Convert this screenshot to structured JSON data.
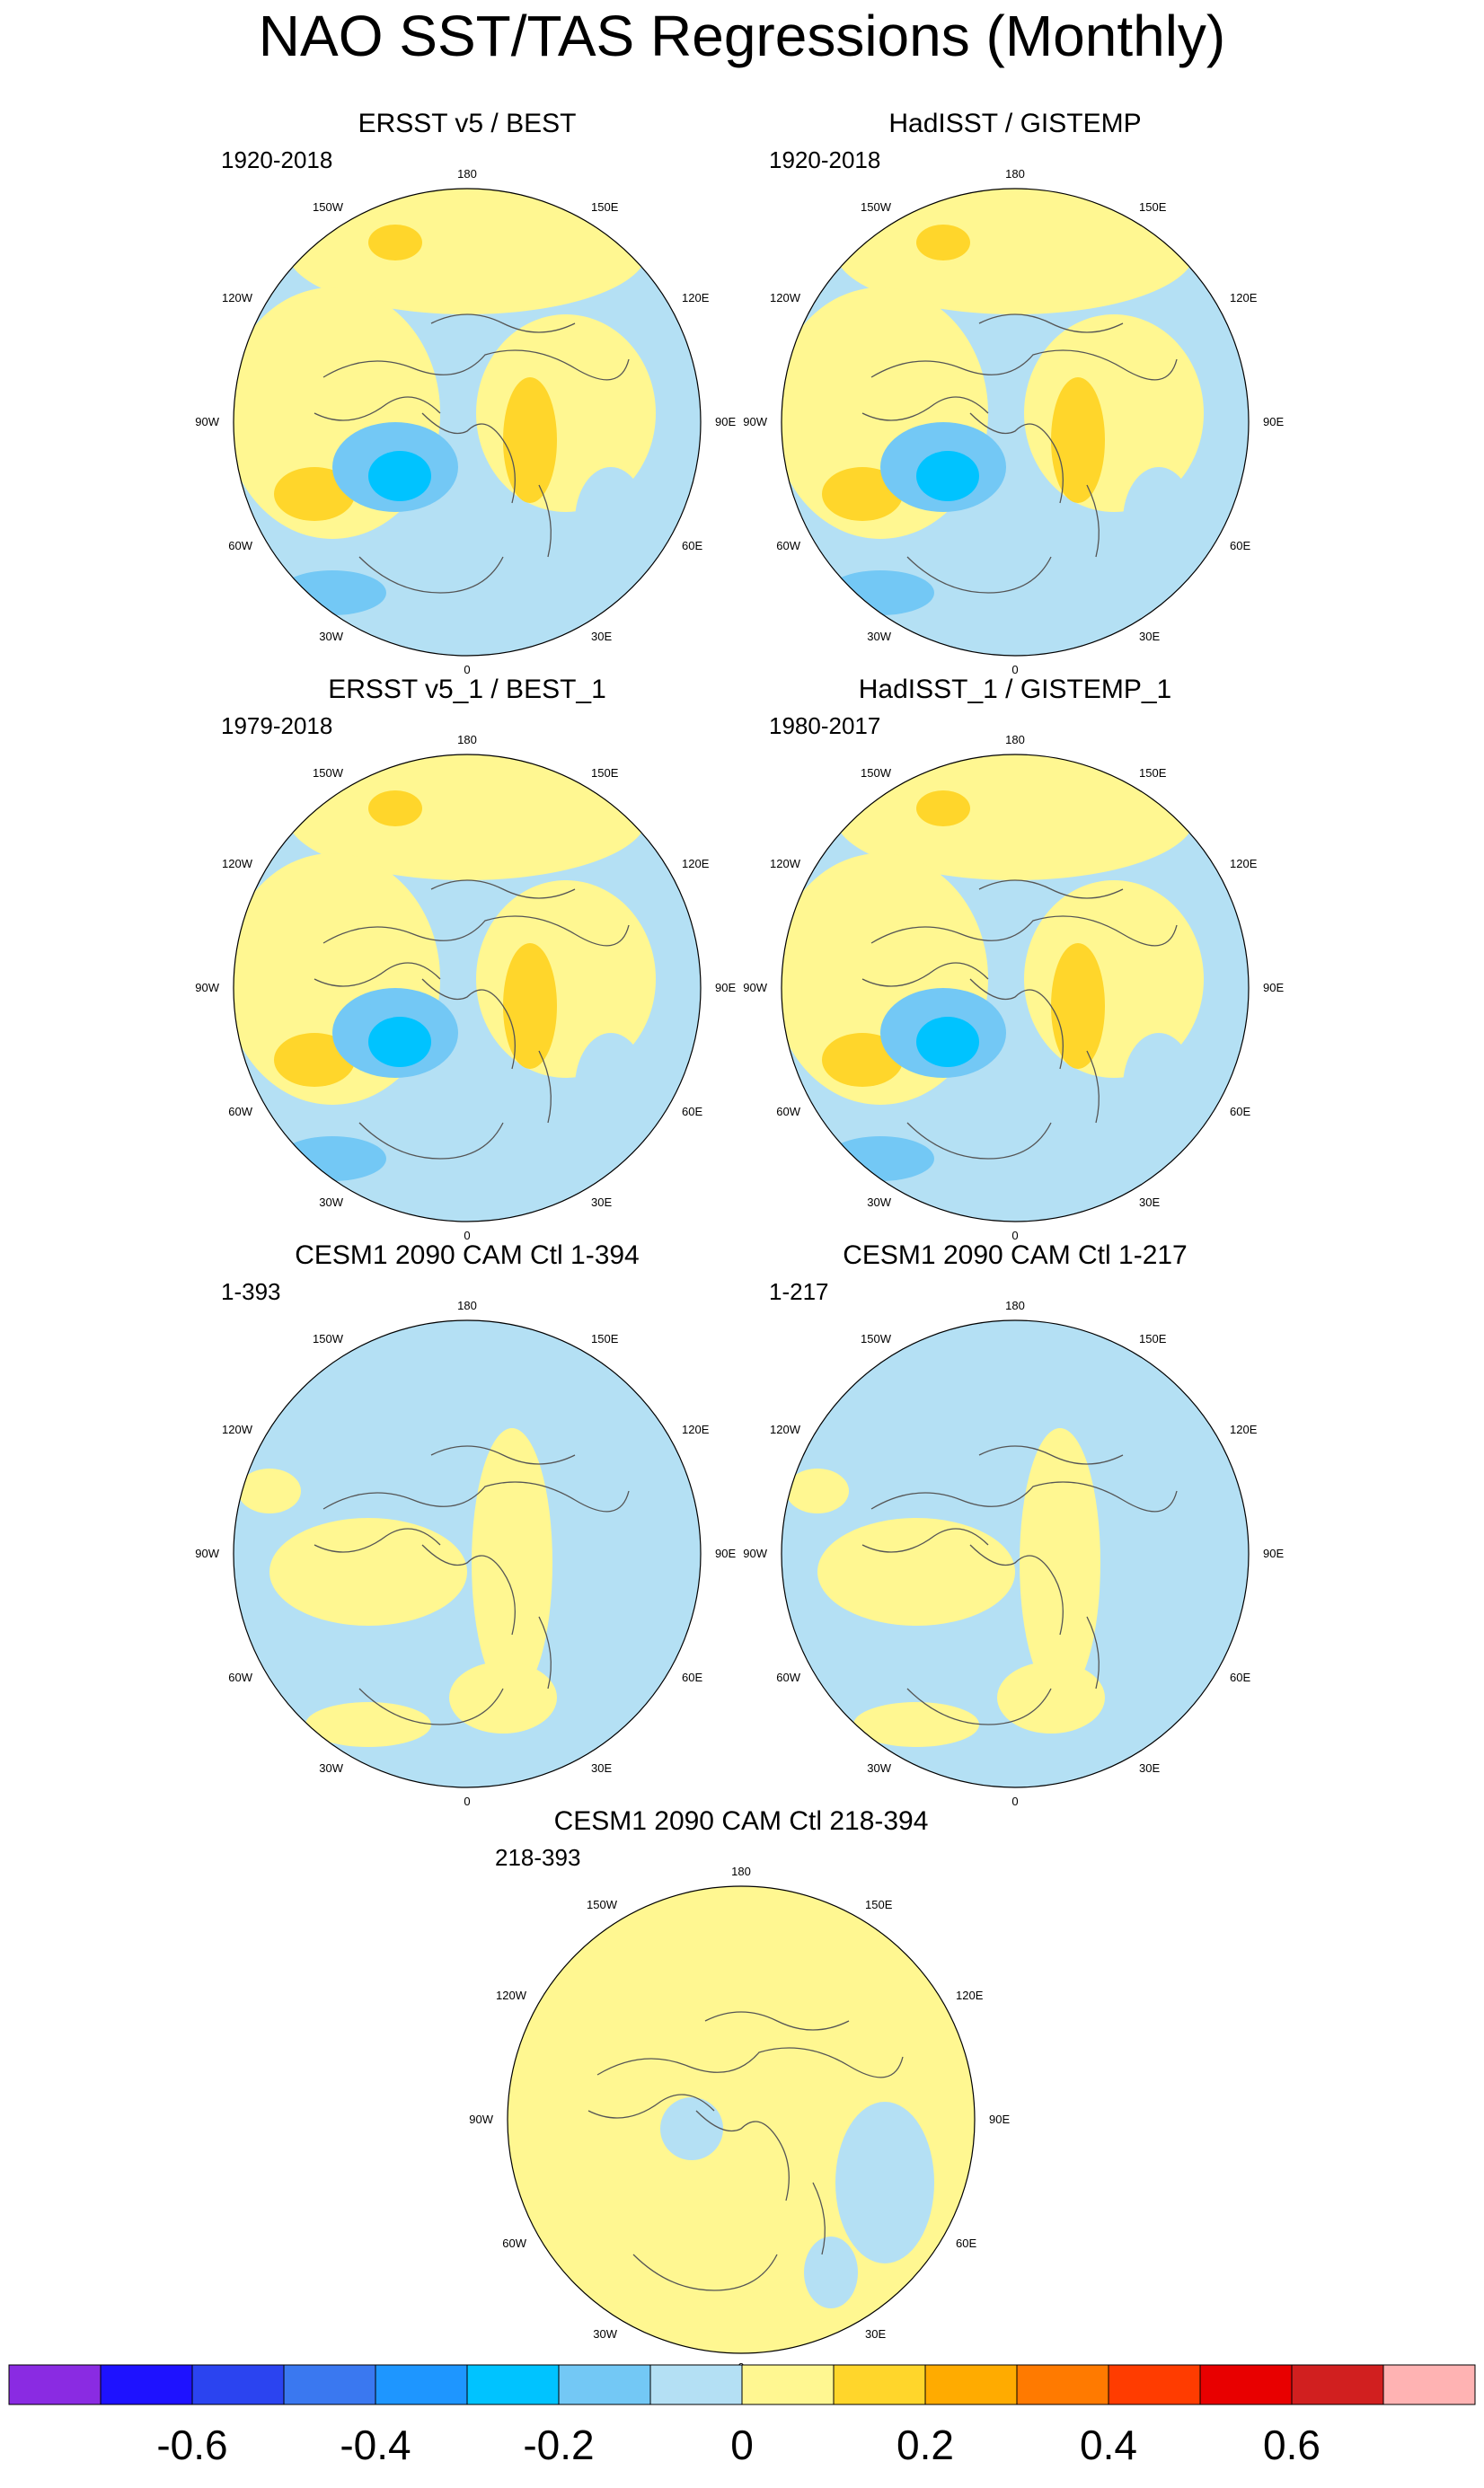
{
  "title": "NAO SST/TAS Regressions (Monthly)",
  "lon_labels": [
    "180",
    "150E",
    "120E",
    "90E",
    "60E",
    "30E",
    "0",
    "30W",
    "60W",
    "90W",
    "120W",
    "150W"
  ],
  "panels": [
    {
      "title": "ERSST v5 / BEST",
      "period": "1920-2018",
      "style": "obs"
    },
    {
      "title": "HadISST / GISTEMP",
      "period": "1920-2018",
      "style": "obs"
    },
    {
      "title": "ERSST v5_1 / BEST_1",
      "period": "1979-2018",
      "style": "obs"
    },
    {
      "title": "HadISST_1 / GISTEMP_1",
      "period": "1980-2017",
      "style": "obs"
    },
    {
      "title": "CESM1 2090 CAM Ctl 1-394",
      "period": "1-393",
      "style": "model"
    },
    {
      "title": "CESM1 2090 CAM Ctl 1-217",
      "period": "1-217",
      "style": "model"
    },
    {
      "title": "CESM1 2090 CAM Ctl 218-394",
      "period": "218-393",
      "style": "model-warm"
    }
  ],
  "colorbar": {
    "colors": [
      "#8a2be2",
      "#1e12ff",
      "#2b44f0",
      "#3a78f0",
      "#1e96ff",
      "#00c3ff",
      "#73c8f5",
      "#b4e0f4",
      "#fff791",
      "#ffd62b",
      "#ffab00",
      "#ff7a00",
      "#ff3c00",
      "#e80000",
      "#d11f1f",
      "#ffb3b3"
    ],
    "labels": [
      "-0.6",
      "-0.4",
      "-0.2",
      "0",
      "0.2",
      "0.4",
      "0.6"
    ]
  }
}
